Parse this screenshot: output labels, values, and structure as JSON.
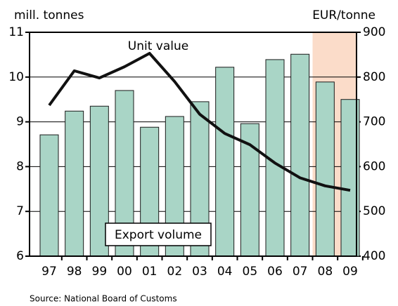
{
  "chart_data": {
    "type": "bar_line",
    "y_label": "mill. tonnes",
    "y2_label": "EUR/tonne",
    "source": "Source: National Board of Customs",
    "categories": [
      "97",
      "98",
      "99",
      "00",
      "01",
      "02",
      "03",
      "04",
      "05",
      "06",
      "07",
      "08",
      "09"
    ],
    "series": [
      {
        "name": "Export volume",
        "type": "bar",
        "color": "#a9d5c6",
        "values": [
          8.71,
          9.24,
          9.35,
          9.7,
          8.88,
          9.12,
          9.45,
          10.22,
          8.96,
          10.39,
          10.51,
          9.89,
          9.5
        ]
      },
      {
        "name": "Unit value",
        "type": "line",
        "axis": "y2",
        "color": "#111111",
        "values": [
          737,
          814,
          798,
          823,
          853,
          790,
          717,
          674,
          649,
          608,
          575,
          557,
          547
        ]
      }
    ],
    "ylim": [
      6,
      11
    ],
    "yticks": [
      6,
      7,
      8,
      9,
      10,
      11
    ],
    "y2lim": [
      400,
      900
    ],
    "y2ticks": [
      400,
      500,
      600,
      700,
      800,
      900
    ],
    "grid": true,
    "shaded_from_category": "08",
    "shade_color": "#fbdcc9"
  }
}
